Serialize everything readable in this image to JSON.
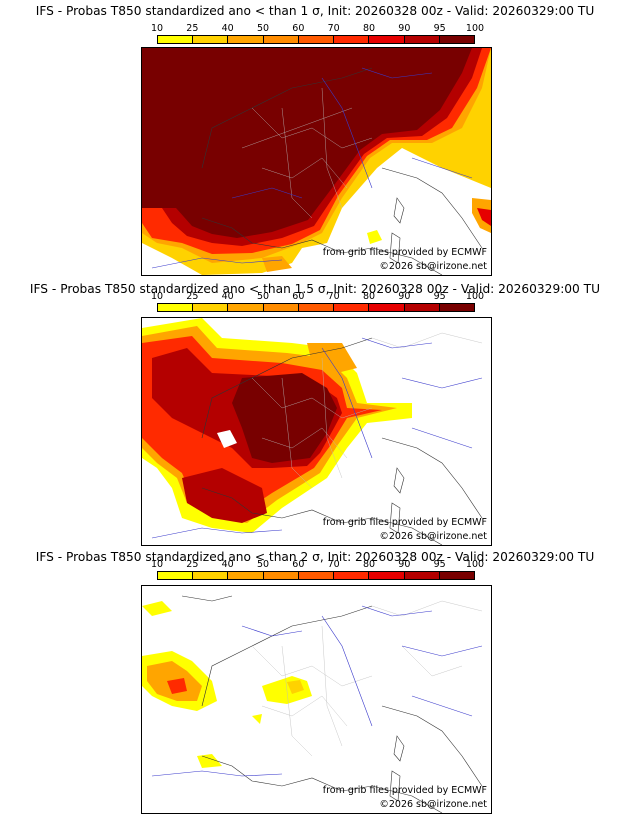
{
  "legend": {
    "ticks": [
      "10",
      "25",
      "40",
      "50",
      "60",
      "70",
      "80",
      "90",
      "95",
      "100"
    ],
    "colors": [
      "#ffff00",
      "#ffd200",
      "#ffa500",
      "#ff8c00",
      "#ff5a00",
      "#ff2a00",
      "#e60000",
      "#b40000",
      "#780000"
    ]
  },
  "panels": [
    {
      "title": "IFS - Probas T850  standardized ano < than 1 σ, Init: 20260328 00z - Valid: 20260329:00 TU",
      "source_credit": "from grib files provided by ECMWF",
      "copyright": "©2026 sb@irizone.net"
    },
    {
      "title": "IFS - Probas T850  standardized ano < than 1.5 σ, Init: 20260328 00z - Valid: 20260329:00 TU",
      "source_credit": "from grib files provided by ECMWF",
      "copyright": "©2026 sb@irizone.net"
    },
    {
      "title": "IFS - Probas T850  standardized ano < than 2 σ, Init: 20260328 00z - Valid: 20260329:00 TU",
      "source_credit": "from grib files provided by ECMWF",
      "copyright": "©2026 sb@irizone.net"
    }
  ]
}
